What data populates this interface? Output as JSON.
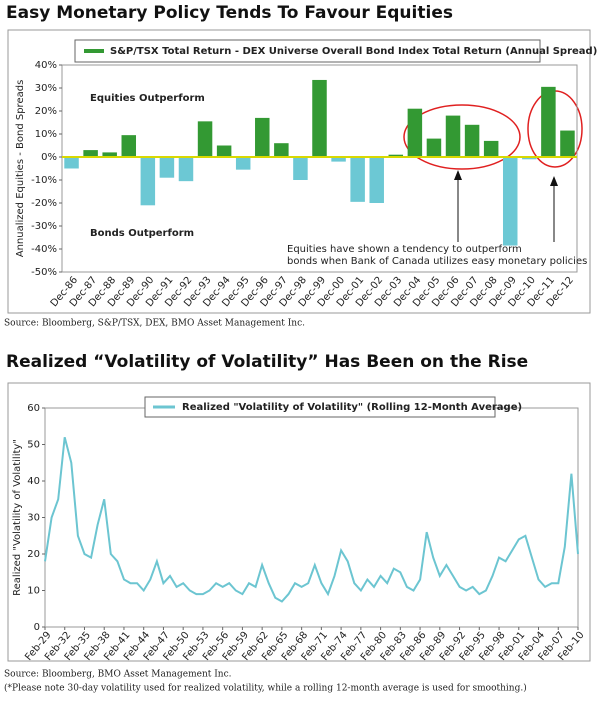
{
  "chart_data": [
    {
      "type": "bar",
      "title": "Easy Monetary Policy Tends To Favour Equities",
      "y_label": "Annualized Equities - Bond Spreads",
      "legend": "S&P/TSX Total Return - DEX Universe Overall Bond Index Total Return (Annual Spread)",
      "annotations": [
        "Equities Outperform",
        "Bonds Outperform",
        "Equities have shown a tendency to outperform",
        "bonds when Bank of Canada utilizes easy monetary policies"
      ],
      "source": "Source: Bloomberg, S&P/TSX, DEX, BMO Asset Management Inc.",
      "categories": [
        "Dec-86",
        "Dec-87",
        "Dec-88",
        "Dec-89",
        "Dec-90",
        "Dec-91",
        "Dec-92",
        "Dec-93",
        "Dec-94",
        "Dec-95",
        "Dec-96",
        "Dec-97",
        "Dec-98",
        "Dec-99",
        "Dec-00",
        "Dec-01",
        "Dec-02",
        "Dec-03",
        "Dec-04",
        "Dec-05",
        "Dec-06",
        "Dec-07",
        "Dec-08",
        "Dec-09",
        "Dec-10",
        "Dec-11",
        "Dec-12"
      ],
      "values": [
        -5,
        3,
        2,
        9.5,
        -21,
        -9,
        -10.5,
        15.5,
        5,
        -5.5,
        17,
        6,
        -10,
        33.5,
        -2,
        -19.5,
        -20,
        1,
        21,
        8,
        18,
        14,
        7,
        -38.5,
        -1,
        30.5,
        11.5
      ],
      "pos_color": "#339933",
      "neg_color": "#6cc8d4",
      "zero_color": "#d8d800",
      "ylim": [
        -50,
        40
      ],
      "yticks": [
        {
          "value": -50,
          "label": "-50%"
        },
        {
          "value": -40,
          "label": "-40%"
        },
        {
          "value": -30,
          "label": "-30%"
        },
        {
          "value": -20,
          "label": "-20%"
        },
        {
          "value": -10,
          "label": "-10%"
        },
        {
          "value": 0,
          "label": "0%"
        },
        {
          "value": 10,
          "label": "10%"
        },
        {
          "value": 20,
          "label": "20%"
        },
        {
          "value": 30,
          "label": "30%"
        },
        {
          "value": 40,
          "label": "40%"
        }
      ]
    },
    {
      "type": "line",
      "title": "Realized “Volatility of Volatility” Has Been on the Rise",
      "y_label": "Realized \"Volatility of Volatility\"",
      "source": "Source: Bloomberg, BMO Asset Management Inc.",
      "note": "(*Please note 30-day volatility used for realized volatility, while a rolling 12-month average is used for smoothing.)",
      "categories": [
        "Feb-29",
        null,
        null,
        "Feb-32",
        null,
        null,
        "Feb-35",
        null,
        null,
        "Feb-38",
        null,
        null,
        "Feb-41",
        null,
        null,
        "Feb-44",
        null,
        null,
        "Feb-47",
        null,
        null,
        "Feb-50",
        null,
        null,
        "Feb-53",
        null,
        null,
        "Feb-56",
        null,
        null,
        "Feb-59",
        null,
        null,
        "Feb-62",
        null,
        null,
        "Feb-65",
        null,
        null,
        "Feb-68",
        null,
        null,
        "Feb-71",
        null,
        null,
        "Feb-74",
        null,
        null,
        "Feb-77",
        null,
        null,
        "Feb-80",
        null,
        null,
        "Feb-83",
        null,
        null,
        "Feb-86",
        null,
        null,
        "Feb-89",
        null,
        null,
        "Feb-92",
        null,
        null,
        "Feb-95",
        null,
        null,
        "Feb-98",
        null,
        null,
        "Feb-01",
        null,
        null,
        "Feb-04",
        null,
        null,
        "Feb-07",
        null,
        null,
        "Feb-10"
      ],
      "series": [
        {
          "name": "Realized \"Volatility of Volatility\" (Rolling 12-Month Average)",
          "color": "#6cc5d1",
          "values": [
            18,
            30,
            35,
            52,
            45,
            25,
            20,
            19,
            28,
            35,
            20,
            18,
            13,
            12,
            12,
            10,
            13,
            18,
            12,
            14,
            11,
            12,
            10,
            9,
            9,
            10,
            12,
            11,
            12,
            10,
            9,
            12,
            11,
            17,
            12,
            8,
            7,
            9,
            12,
            11,
            12,
            17,
            12,
            9,
            14,
            21,
            18,
            12,
            10,
            13,
            11,
            14,
            12,
            16,
            15,
            11,
            10,
            13,
            26,
            19,
            14,
            17,
            14,
            11,
            10,
            11,
            9,
            10,
            14,
            19,
            18,
            21,
            24,
            25,
            19,
            13,
            11,
            12,
            12,
            22,
            42,
            20
          ]
        }
      ],
      "ylim": [
        0,
        60
      ],
      "yticks": [
        0,
        10,
        20,
        30,
        40,
        50,
        60
      ]
    }
  ]
}
